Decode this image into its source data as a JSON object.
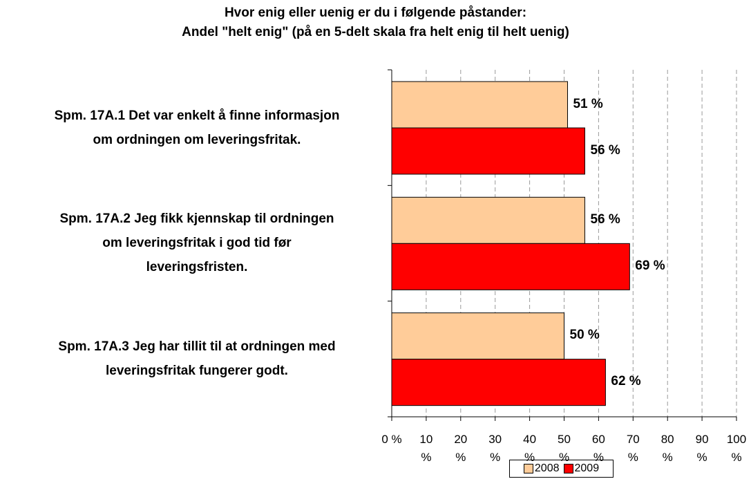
{
  "chart_data": {
    "type": "hbar",
    "title": "Hvor enig eller uenig er du i følgende påstander:",
    "subtitle": "Andel \"helt enig\" (på en 5-delt skala fra helt enig til helt uenig)",
    "categories": [
      "Spm. 17A.1 Det var enkelt å finne informasjon\nom ordningen om leveringsfritak.",
      "Spm. 17A.2 Jeg fikk kjennskap til ordningen\nom leveringsfritak i god tid før\nleveringsfristen.",
      "Spm. 17A.3 Jeg har tillit til at ordningen med\nleveringsfritak fungerer godt."
    ],
    "series": [
      {
        "name": "2008",
        "color": "#FFCC99",
        "values": [
          51,
          56,
          50
        ],
        "value_labels": [
          "51 %",
          "56 %",
          "50 %"
        ]
      },
      {
        "name": "2009",
        "color": "#FF0000",
        "values": [
          56,
          69,
          62
        ],
        "value_labels": [
          "56 %",
          "69 %",
          "62 %"
        ]
      }
    ],
    "xlim": [
      0,
      100
    ],
    "xticks": [
      {
        "value": 0,
        "label": "0 %"
      },
      {
        "value": 10,
        "label": "10 %"
      },
      {
        "value": 20,
        "label": "20 %"
      },
      {
        "value": 30,
        "label": "30 %"
      },
      {
        "value": 40,
        "label": "40 %"
      },
      {
        "value": 50,
        "label": "50 %"
      },
      {
        "value": 60,
        "label": "60 %"
      },
      {
        "value": 70,
        "label": "70 %"
      },
      {
        "value": 80,
        "label": "80 %"
      },
      {
        "value": 90,
        "label": "90 %"
      },
      {
        "value": 100,
        "label": "100 %"
      }
    ],
    "grid": true,
    "legend": "bottom"
  }
}
